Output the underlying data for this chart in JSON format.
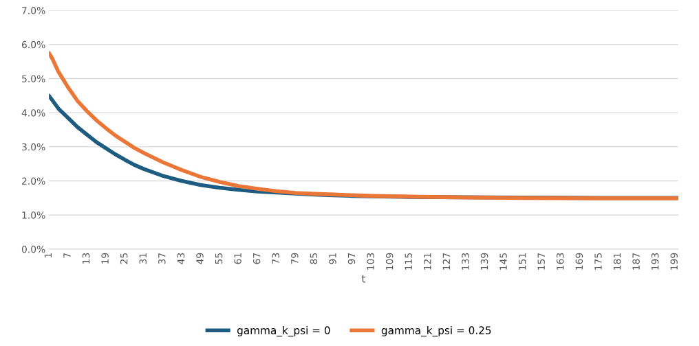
{
  "chart_data": {
    "type": "line",
    "xlabel": "t",
    "xlim": [
      1,
      200
    ],
    "xticks": [
      1,
      7,
      13,
      19,
      25,
      31,
      37,
      43,
      49,
      55,
      61,
      67,
      73,
      79,
      85,
      91,
      97,
      103,
      109,
      115,
      121,
      127,
      133,
      139,
      145,
      151,
      157,
      163,
      169,
      175,
      181,
      187,
      193,
      199
    ],
    "ylim": [
      0,
      7
    ],
    "yticks": [
      {
        "value": 0,
        "label": "0.0%"
      },
      {
        "value": 1,
        "label": "1.0%"
      },
      {
        "value": 2,
        "label": "2.0%"
      },
      {
        "value": 3,
        "label": "3.0%"
      },
      {
        "value": 4,
        "label": "4.0%"
      },
      {
        "value": 5,
        "label": "5.0%"
      },
      {
        "value": 6,
        "label": "6.0%"
      },
      {
        "value": 7,
        "label": "7.0%"
      }
    ],
    "grid": "y",
    "legend": "bottom",
    "marker": "none",
    "line_style": "solid",
    "series": [
      {
        "name": "gamma_k_psi = 0",
        "color": "#1d5c80",
        "x": [
          1,
          4,
          7,
          10,
          13,
          16,
          19,
          22,
          25,
          28,
          31,
          37,
          43,
          49,
          55,
          61,
          67,
          73,
          79,
          85,
          91,
          97,
          103,
          115,
          150,
          175,
          200
        ],
        "values": [
          4.5,
          4.12,
          3.85,
          3.58,
          3.36,
          3.14,
          2.96,
          2.78,
          2.62,
          2.47,
          2.35,
          2.15,
          2.0,
          1.88,
          1.8,
          1.74,
          1.69,
          1.66,
          1.63,
          1.6,
          1.58,
          1.56,
          1.55,
          1.53,
          1.51,
          1.5,
          1.5
        ]
      },
      {
        "name": "gamma_k_psi = 0.25",
        "color": "#ea7738",
        "x": [
          1,
          2,
          4,
          7,
          10,
          13,
          16,
          19,
          22,
          25,
          28,
          31,
          37,
          43,
          49,
          55,
          61,
          67,
          73,
          79,
          85,
          91,
          97,
          103,
          115,
          130,
          150,
          175,
          200
        ],
        "values": [
          5.75,
          5.6,
          5.2,
          4.75,
          4.35,
          4.05,
          3.78,
          3.55,
          3.33,
          3.15,
          2.97,
          2.82,
          2.55,
          2.32,
          2.12,
          1.97,
          1.85,
          1.77,
          1.7,
          1.65,
          1.62,
          1.6,
          1.58,
          1.56,
          1.54,
          1.52,
          1.5,
          1.49,
          1.49
        ]
      }
    ]
  }
}
